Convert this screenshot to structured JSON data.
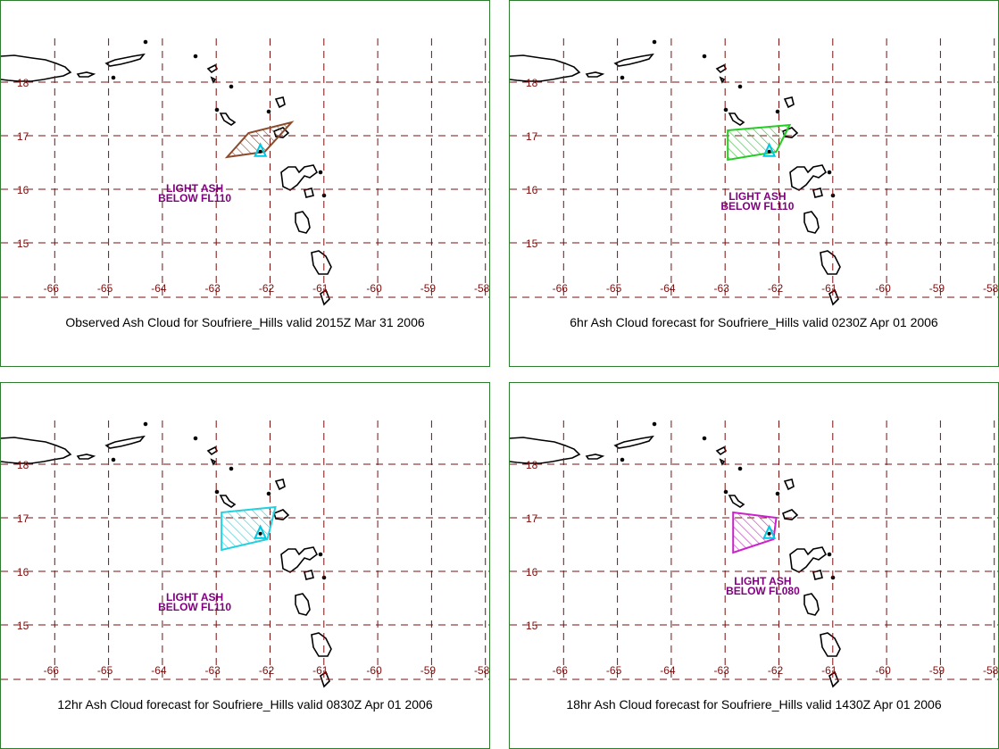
{
  "colors": {
    "grid": "#7a0f0f",
    "coast": "#000000",
    "volcano": "#00c8e0",
    "border": "#2e7d2e"
  },
  "map": {
    "lon_ticks": [
      "-66",
      "-65",
      "-64",
      "-63",
      "-62",
      "-61",
      "-60",
      "-59",
      "-58"
    ],
    "lat_ticks": [
      "18",
      "17",
      "16",
      "15"
    ],
    "volcano_icon": "volcano-marker-icon"
  },
  "panels": [
    {
      "id": "observed",
      "caption": "Observed Ash Cloud for Soufriere_Hills valid 2015Z Mar 31 2006",
      "label_line1": "LIGHT ASH",
      "label_line2": "BELOW  FL110",
      "cloud_color": "#8b4a2b",
      "cloud_lonlat": [
        [
          -62.8,
          16.6
        ],
        [
          -62.4,
          17.05
        ],
        [
          -61.6,
          17.25
        ],
        [
          -62.1,
          16.7
        ]
      ],
      "label_lonlat": [
        -63.4,
        15.95
      ]
    },
    {
      "id": "forecast-6hr",
      "caption": "6hr Ash Cloud forecast for Soufriere_Hills valid 0230Z Apr 01 2006",
      "label_line1": "LIGHT ASH",
      "label_line2": "BELOW  FL110",
      "cloud_color": "#22cc22",
      "cloud_lonlat": [
        [
          -62.95,
          16.55
        ],
        [
          -62.95,
          17.1
        ],
        [
          -61.8,
          17.2
        ],
        [
          -62.05,
          16.7
        ]
      ],
      "label_lonlat": [
        -62.4,
        15.8
      ]
    },
    {
      "id": "forecast-12hr",
      "caption": "12hr Ash Cloud forecast for Soufriere_Hills valid 0830Z Apr 01 2006",
      "label_line1": "LIGHT ASH",
      "label_line2": "BELOW  FL110",
      "cloud_color": "#22d0e0",
      "cloud_lonlat": [
        [
          -62.9,
          16.4
        ],
        [
          -62.9,
          17.1
        ],
        [
          -61.9,
          17.2
        ],
        [
          -62.05,
          16.6
        ]
      ],
      "label_lonlat": [
        -63.4,
        15.45
      ]
    },
    {
      "id": "forecast-18hr",
      "caption": "18hr Ash Cloud forecast for Soufriere_Hills valid 1430Z Apr 01 2006",
      "label_line1": "LIGHT ASH",
      "label_line2": "BELOW  FL080",
      "cloud_color": "#cc22cc",
      "cloud_lonlat": [
        [
          -62.85,
          16.35
        ],
        [
          -62.85,
          17.1
        ],
        [
          -62.05,
          17.0
        ],
        [
          -62.1,
          16.6
        ]
      ],
      "label_lonlat": [
        -62.3,
        15.75
      ]
    }
  ]
}
